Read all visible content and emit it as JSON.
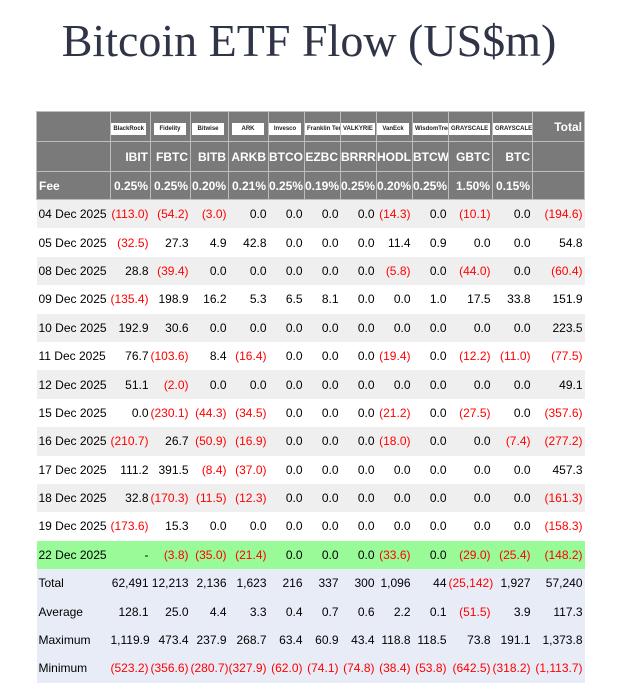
{
  "title": "Bitcoin ETF Flow (US$m)",
  "issuers": [
    "BlackRock",
    "Fidelity",
    "Bitwise",
    "ARK",
    "Invesco",
    "Franklin Templeton",
    "VALKYRIE",
    "VanEck",
    "WisdomTree",
    "GRAYSCALE",
    "GRAYSCALE"
  ],
  "total_header": "Total",
  "tickers": [
    "IBIT",
    "FBTC",
    "BITB",
    "ARKB",
    "BTCO",
    "EZBC",
    "BRRR",
    "HODL",
    "BTCW",
    "GBTC",
    "BTC"
  ],
  "fee_label": "Fee",
  "fees": [
    "0.25%",
    "0.25%",
    "0.20%",
    "0.21%",
    "0.25%",
    "0.19%",
    "0.25%",
    "0.20%",
    "0.25%",
    "1.50%",
    "0.15%"
  ],
  "highlight_color": "#98fb98",
  "rows": [
    [
      "04 Dec 2025",
      "(113.0)",
      "(54.2)",
      "(3.0)",
      "0.0",
      "0.0",
      "0.0",
      "0.0",
      "(14.3)",
      "0.0",
      "(10.1)",
      "0.0",
      "(194.6)"
    ],
    [
      "05 Dec 2025",
      "(32.5)",
      "27.3",
      "4.9",
      "42.8",
      "0.0",
      "0.0",
      "0.0",
      "11.4",
      "0.9",
      "0.0",
      "0.0",
      "54.8"
    ],
    [
      "08 Dec 2025",
      "28.8",
      "(39.4)",
      "0.0",
      "0.0",
      "0.0",
      "0.0",
      "0.0",
      "(5.8)",
      "0.0",
      "(44.0)",
      "0.0",
      "(60.4)"
    ],
    [
      "09 Dec 2025",
      "(135.4)",
      "198.9",
      "16.2",
      "5.3",
      "6.5",
      "8.1",
      "0.0",
      "0.0",
      "1.0",
      "17.5",
      "33.8",
      "151.9"
    ],
    [
      "10 Dec 2025",
      "192.9",
      "30.6",
      "0.0",
      "0.0",
      "0.0",
      "0.0",
      "0.0",
      "0.0",
      "0.0",
      "0.0",
      "0.0",
      "223.5"
    ],
    [
      "11 Dec 2025",
      "76.7",
      "(103.6)",
      "8.4",
      "(16.4)",
      "0.0",
      "0.0",
      "0.0",
      "(19.4)",
      "0.0",
      "(12.2)",
      "(11.0)",
      "(77.5)"
    ],
    [
      "12 Dec 2025",
      "51.1",
      "(2.0)",
      "0.0",
      "0.0",
      "0.0",
      "0.0",
      "0.0",
      "0.0",
      "0.0",
      "0.0",
      "0.0",
      "49.1"
    ],
    [
      "15 Dec 2025",
      "0.0",
      "(230.1)",
      "(44.3)",
      "(34.5)",
      "0.0",
      "0.0",
      "0.0",
      "(21.2)",
      "0.0",
      "(27.5)",
      "0.0",
      "(357.6)"
    ],
    [
      "16 Dec 2025",
      "(210.7)",
      "26.7",
      "(50.9)",
      "(16.9)",
      "0.0",
      "0.0",
      "0.0",
      "(18.0)",
      "0.0",
      "0.0",
      "(7.4)",
      "(277.2)"
    ],
    [
      "17 Dec 2025",
      "111.2",
      "391.5",
      "(8.4)",
      "(37.0)",
      "0.0",
      "0.0",
      "0.0",
      "0.0",
      "0.0",
      "0.0",
      "0.0",
      "457.3"
    ],
    [
      "18 Dec 2025",
      "32.8",
      "(170.3)",
      "(11.5)",
      "(12.3)",
      "0.0",
      "0.0",
      "0.0",
      "0.0",
      "0.0",
      "0.0",
      "0.0",
      "(161.3)"
    ],
    [
      "19 Dec 2025",
      "(173.6)",
      "15.3",
      "0.0",
      "0.0",
      "0.0",
      "0.0",
      "0.0",
      "0.0",
      "0.0",
      "0.0",
      "0.0",
      "(158.3)"
    ],
    [
      "22 Dec 2025",
      "-",
      "(3.8)",
      "(35.0)",
      "(21.4)",
      "0.0",
      "0.0",
      "0.0",
      "(33.6)",
      "0.0",
      "(29.0)",
      "(25.4)",
      "(148.2)"
    ]
  ],
  "highlight_row": "22 Dec 2025",
  "summary": [
    [
      "Total",
      "62,491",
      "12,213",
      "2,136",
      "1,623",
      "216",
      "337",
      "300",
      "1,096",
      "44",
      "(25,142)",
      "1,927",
      "57,240"
    ],
    [
      "Average",
      "128.1",
      "25.0",
      "4.4",
      "3.3",
      "0.4",
      "0.7",
      "0.6",
      "2.2",
      "0.1",
      "(51.5)",
      "3.9",
      "117.3"
    ],
    [
      "Maximum",
      "1,119.9",
      "473.4",
      "237.9",
      "268.7",
      "63.4",
      "60.9",
      "43.4",
      "118.8",
      "118.5",
      "73.8",
      "191.1",
      "1,373.8"
    ],
    [
      "Minimum",
      "(523.2)",
      "(356.6)",
      "(280.7)",
      "(327.9)",
      "(62.0)",
      "(74.1)",
      "(74.8)",
      "(38.4)",
      "(53.8)",
      "(642.5)",
      "(318.2)",
      "(1,113.7)"
    ]
  ]
}
